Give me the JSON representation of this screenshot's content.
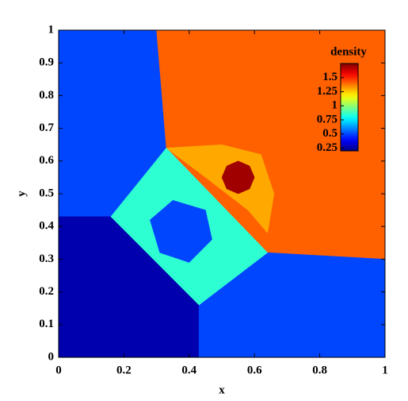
{
  "chart_data": {
    "type": "contour",
    "xlabel": "x",
    "ylabel": "y",
    "colorbar_label": "density",
    "colormap": "jet",
    "xlim": [
      0,
      1
    ],
    "ylim": [
      0,
      1
    ],
    "xticks": [
      0,
      0.2,
      0.4,
      0.6,
      0.8,
      1
    ],
    "yticks": [
      0,
      0.1,
      0.2,
      0.3,
      0.4,
      0.5,
      0.6,
      0.7,
      0.8,
      0.9,
      1
    ],
    "clim": [
      0.2,
      1.75
    ],
    "cticks": [
      0.25,
      0.5,
      0.75,
      1,
      1.25,
      1.5
    ],
    "regions": [
      {
        "x": [
          0,
          0.3,
          0.33,
          0.16,
          0
        ],
        "y": [
          1,
          1,
          0.64,
          0.43,
          0.43
        ],
        "value": 0.5
      },
      {
        "x": [
          0.3,
          1,
          1,
          0.64,
          0.33
        ],
        "y": [
          1,
          1,
          0.3,
          0.32,
          0.64
        ],
        "value": 1.41
      },
      {
        "x": [
          0,
          0.16,
          0.43,
          0.43,
          0
        ],
        "y": [
          0.43,
          0.43,
          0.16,
          0,
          0
        ],
        "value": 0.27
      },
      {
        "x": [
          0.43,
          0.64,
          1,
          1,
          0.43
        ],
        "y": [
          0.16,
          0.32,
          0.3,
          0,
          0
        ],
        "value": 0.5
      },
      {
        "x": [
          0.33,
          0.64,
          0.43,
          0.16
        ],
        "y": [
          0.64,
          0.32,
          0.16,
          0.43
        ],
        "value": 0.85
      },
      {
        "x": [
          0.33,
          0.5,
          0.62,
          0.66,
          0.64,
          0.58,
          0.45
        ],
        "y": [
          0.64,
          0.65,
          0.62,
          0.5,
          0.38,
          0.45,
          0.55
        ],
        "value": 1.3
      },
      {
        "x": [
          0.55,
          0.585,
          0.6,
          0.585,
          0.55,
          0.515,
          0.5,
          0.515
        ],
        "y": [
          0.6,
          0.585,
          0.55,
          0.515,
          0.5,
          0.515,
          0.55,
          0.585
        ],
        "value": 1.7
      },
      {
        "x": [
          0.28,
          0.35,
          0.45,
          0.47,
          0.4,
          0.31
        ],
        "y": [
          0.42,
          0.48,
          0.45,
          0.36,
          0.29,
          0.32
        ],
        "value": 0.5
      }
    ]
  }
}
